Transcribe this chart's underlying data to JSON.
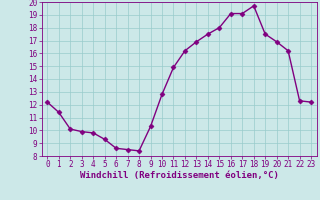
{
  "x": [
    0,
    1,
    2,
    3,
    4,
    5,
    6,
    7,
    8,
    9,
    10,
    11,
    12,
    13,
    14,
    15,
    16,
    17,
    18,
    19,
    20,
    21,
    22,
    23
  ],
  "y": [
    12.2,
    11.4,
    10.1,
    9.9,
    9.8,
    9.3,
    8.6,
    8.5,
    8.4,
    10.3,
    12.8,
    14.9,
    16.2,
    16.9,
    17.5,
    18.0,
    19.1,
    19.1,
    19.7,
    17.5,
    16.9,
    16.2,
    12.3,
    12.2
  ],
  "xlabel": "Windchill (Refroidissement éolien,°C)",
  "ylim": [
    8,
    20
  ],
  "xlim": [
    -0.5,
    23.5
  ],
  "line_color": "#800080",
  "bg_color": "#cce8e8",
  "grid_color": "#99cccc",
  "marker": "D",
  "marker_size": 2.5,
  "line_width": 1.0,
  "yticks": [
    8,
    9,
    10,
    11,
    12,
    13,
    14,
    15,
    16,
    17,
    18,
    19,
    20
  ],
  "xticks": [
    0,
    1,
    2,
    3,
    4,
    5,
    6,
    7,
    8,
    9,
    10,
    11,
    12,
    13,
    14,
    15,
    16,
    17,
    18,
    19,
    20,
    21,
    22,
    23
  ],
  "tick_color": "#800080",
  "spine_color": "#800080",
  "xlabel_fontsize": 6.5,
  "tick_fontsize": 5.5
}
